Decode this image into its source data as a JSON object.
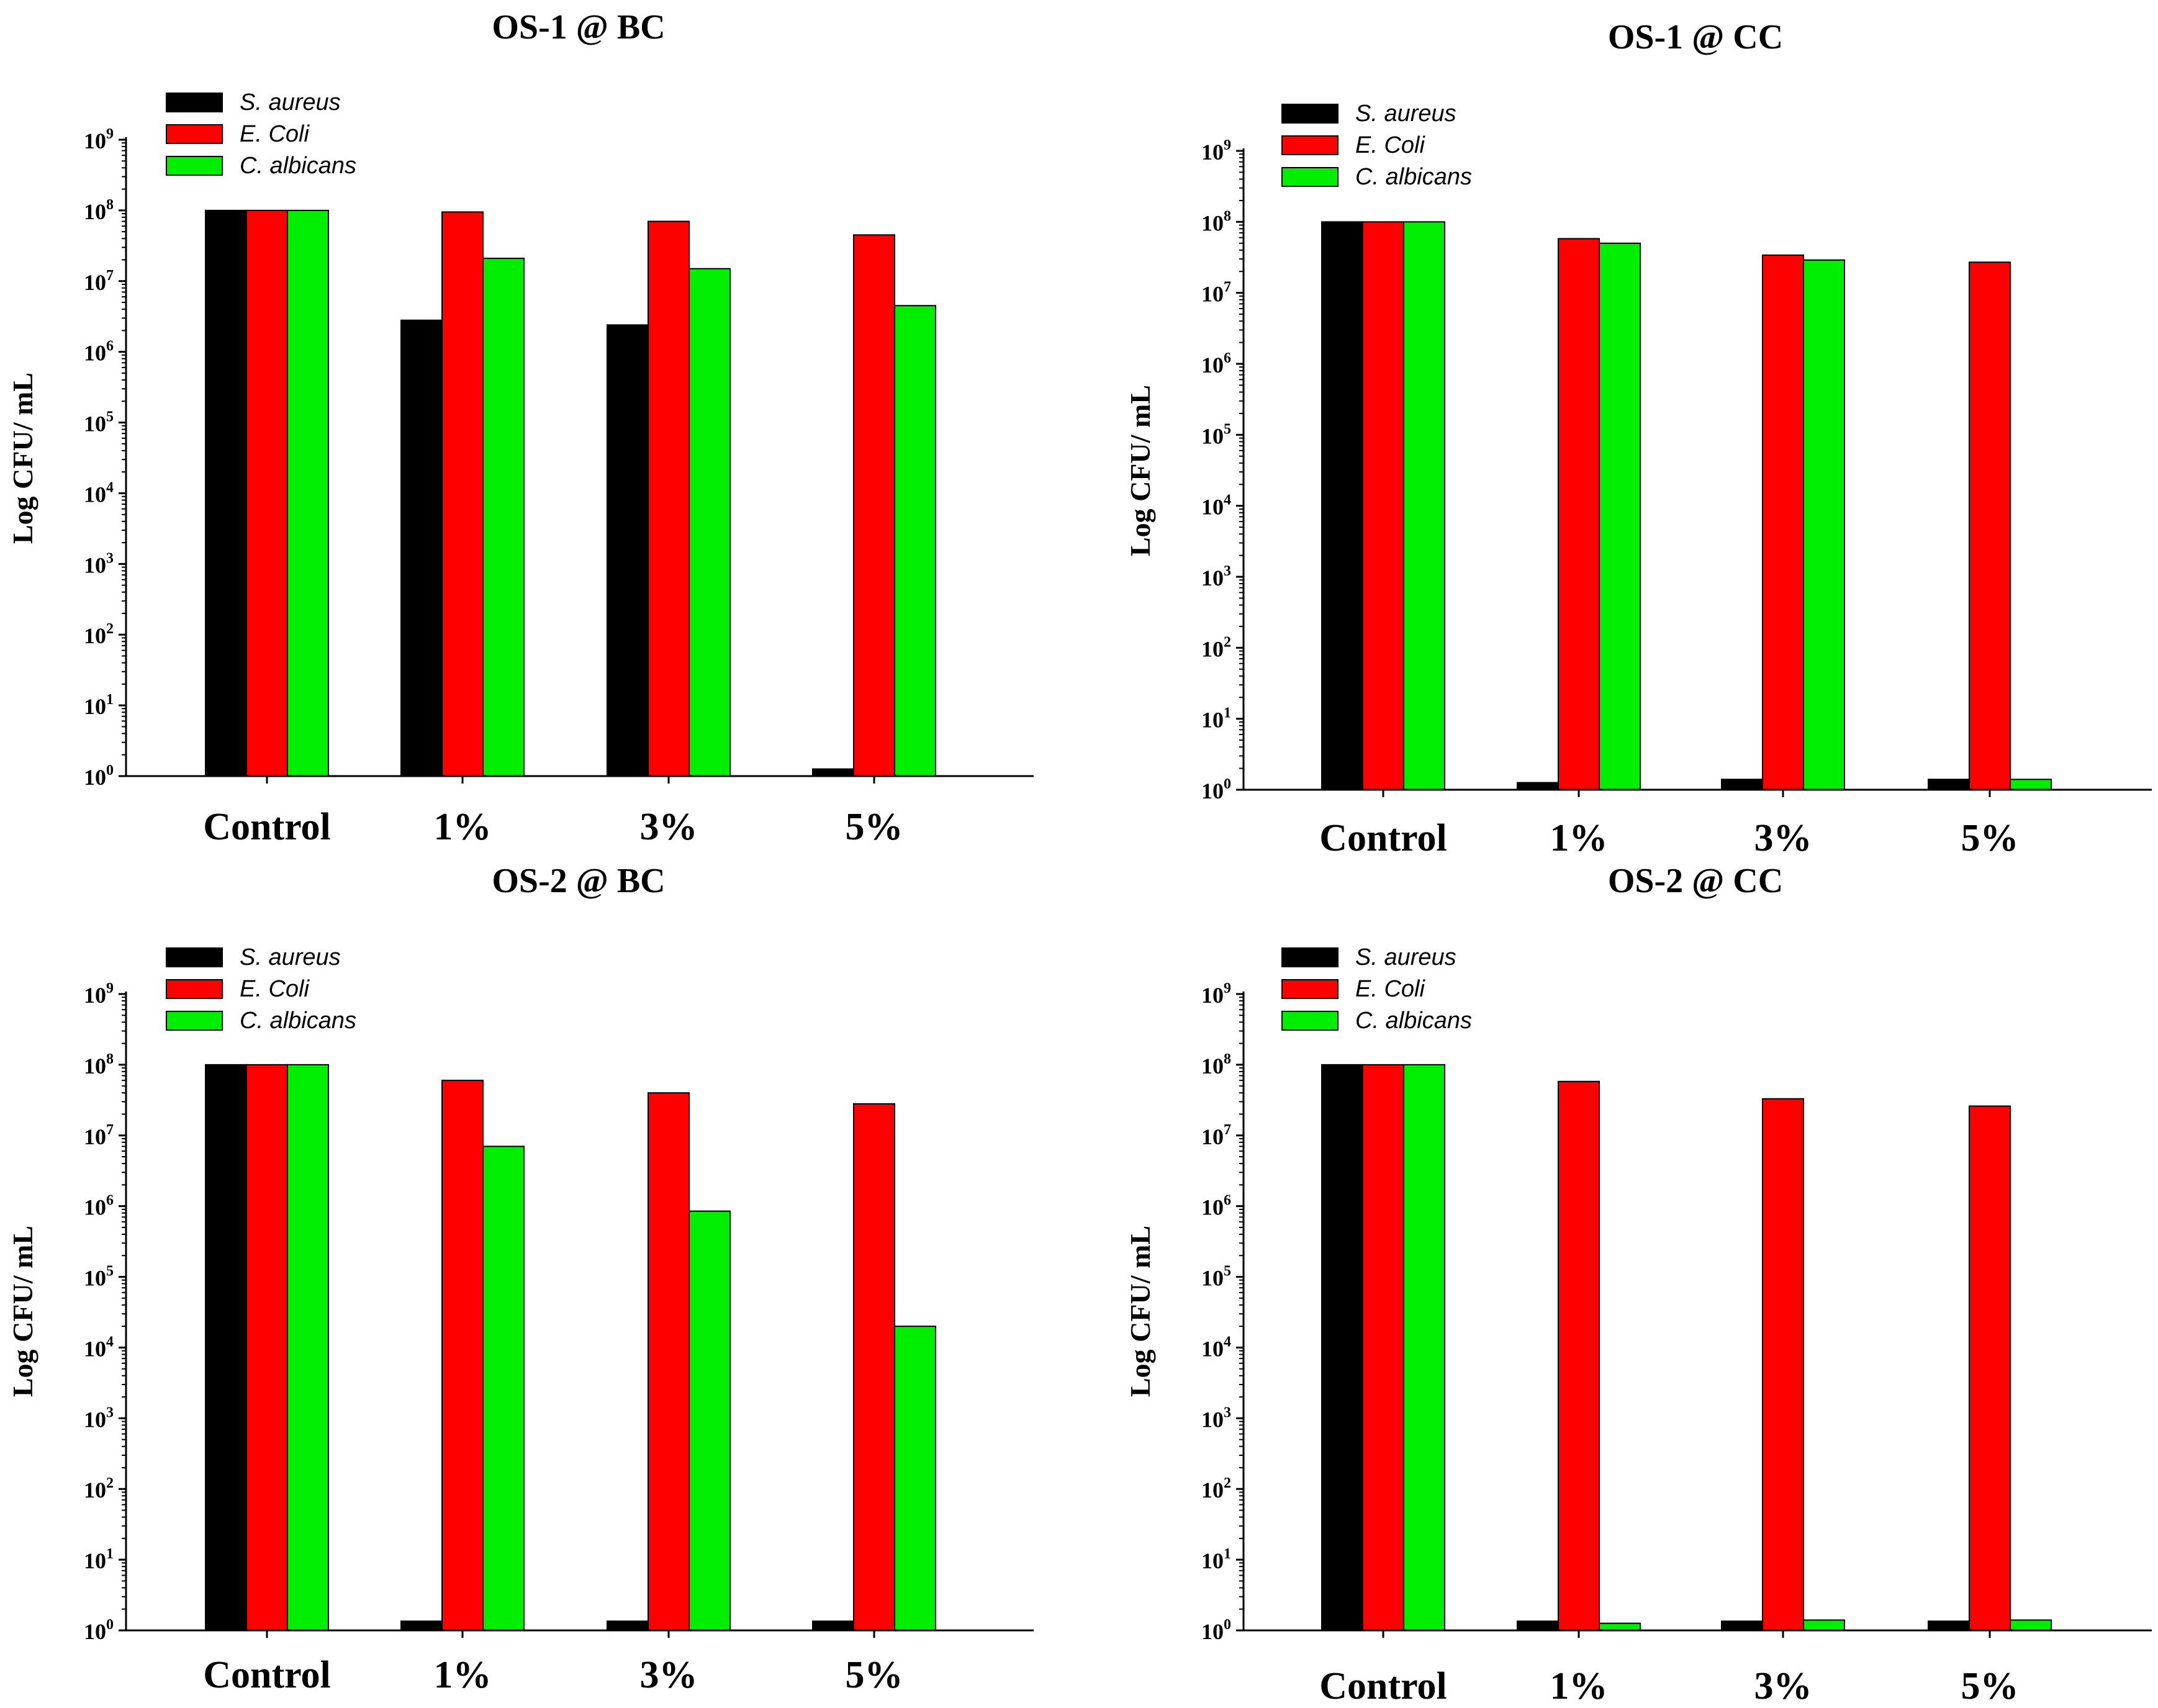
{
  "chart_data": [
    {
      "type": "bar",
      "title": "OS-1 @ BC",
      "ylabel": "Log CFU/ mL",
      "yscale": "log",
      "ylim": [
        1,
        1000000000
      ],
      "yticks": [
        {
          "base": "10",
          "exp": "0"
        },
        {
          "base": "10",
          "exp": "1"
        },
        {
          "base": "10",
          "exp": "2"
        },
        {
          "base": "10",
          "exp": "3"
        },
        {
          "base": "10",
          "exp": "4"
        },
        {
          "base": "10",
          "exp": "5"
        },
        {
          "base": "10",
          "exp": "6"
        },
        {
          "base": "10",
          "exp": "7"
        },
        {
          "base": "10",
          "exp": "8"
        },
        {
          "base": "10",
          "exp": "9"
        }
      ],
      "categories": [
        "Control",
        "1%",
        "3%",
        "5%"
      ],
      "legend": "top-left",
      "series": [
        {
          "name": "S. aureus",
          "color": "#000000",
          "values": [
            100000000,
            2800000,
            2400000,
            1.26
          ]
        },
        {
          "name": "E. Coli",
          "color": "#ff0000",
          "values": [
            100000000,
            95000000,
            70000000,
            45000000
          ]
        },
        {
          "name": "C. albicans",
          "color": "#00ee00",
          "values": [
            100000000,
            21000000,
            15000000,
            4500000
          ]
        }
      ]
    },
    {
      "type": "bar",
      "title": "OS-1 @ CC",
      "ylabel": "Log CFU/ mL",
      "yscale": "log",
      "ylim": [
        1,
        1000000000
      ],
      "yticks": [
        {
          "base": "10",
          "exp": "0"
        },
        {
          "base": "10",
          "exp": "1"
        },
        {
          "base": "10",
          "exp": "2"
        },
        {
          "base": "10",
          "exp": "3"
        },
        {
          "base": "10",
          "exp": "4"
        },
        {
          "base": "10",
          "exp": "5"
        },
        {
          "base": "10",
          "exp": "6"
        },
        {
          "base": "10",
          "exp": "7"
        },
        {
          "base": "10",
          "exp": "8"
        },
        {
          "base": "10",
          "exp": "9"
        }
      ],
      "categories": [
        "Control",
        "1%",
        "3%",
        "5%"
      ],
      "legend": "top-left",
      "series": [
        {
          "name": "S. aureus",
          "color": "#000000",
          "values": [
            100000000,
            1.26,
            1.4,
            1.4
          ]
        },
        {
          "name": "E. Coli",
          "color": "#ff0000",
          "values": [
            100000000,
            58000000,
            34000000,
            27000000
          ]
        },
        {
          "name": "C. albicans",
          "color": "#00ee00",
          "values": [
            100000000,
            50000000,
            29000000,
            1.4
          ]
        }
      ]
    },
    {
      "type": "bar",
      "title": "OS-2 @ BC",
      "ylabel": "Log CFU/ mL",
      "yscale": "log",
      "ylim": [
        1,
        1000000000
      ],
      "yticks": [
        {
          "base": "10",
          "exp": "0"
        },
        {
          "base": "10",
          "exp": "1"
        },
        {
          "base": "10",
          "exp": "2"
        },
        {
          "base": "10",
          "exp": "3"
        },
        {
          "base": "10",
          "exp": "4"
        },
        {
          "base": "10",
          "exp": "5"
        },
        {
          "base": "10",
          "exp": "6"
        },
        {
          "base": "10",
          "exp": "7"
        },
        {
          "base": "10",
          "exp": "8"
        },
        {
          "base": "10",
          "exp": "9"
        }
      ],
      "categories": [
        "Control",
        "1%",
        "3%",
        "5%"
      ],
      "legend": "top-left",
      "series": [
        {
          "name": "S. aureus",
          "color": "#000000",
          "values": [
            100000000,
            1.35,
            1.35,
            1.35
          ]
        },
        {
          "name": "E. Coli",
          "color": "#ff0000",
          "values": [
            100000000,
            60000000,
            40000000,
            28000000
          ]
        },
        {
          "name": "C. albicans",
          "color": "#00ee00",
          "values": [
            100000000,
            7000000,
            850000,
            20000
          ]
        }
      ]
    },
    {
      "type": "bar",
      "title": "OS-2 @ CC",
      "ylabel": "Log CFU/ mL",
      "yscale": "log",
      "ylim": [
        1,
        1000000000
      ],
      "yticks": [
        {
          "base": "10",
          "exp": "0"
        },
        {
          "base": "10",
          "exp": "1"
        },
        {
          "base": "10",
          "exp": "2"
        },
        {
          "base": "10",
          "exp": "3"
        },
        {
          "base": "10",
          "exp": "4"
        },
        {
          "base": "10",
          "exp": "5"
        },
        {
          "base": "10",
          "exp": "6"
        },
        {
          "base": "10",
          "exp": "7"
        },
        {
          "base": "10",
          "exp": "8"
        },
        {
          "base": "10",
          "exp": "9"
        }
      ],
      "categories": [
        "Control",
        "1%",
        "3%",
        "5%"
      ],
      "legend": "top-left",
      "series": [
        {
          "name": "S. aureus",
          "color": "#000000",
          "values": [
            100000000,
            1.35,
            1.35,
            1.35
          ]
        },
        {
          "name": "E. Coli",
          "color": "#ff0000",
          "values": [
            100000000,
            58000000,
            33000000,
            26000000
          ]
        },
        {
          "name": "C. albicans",
          "color": "#00ee00",
          "values": [
            100000000,
            1.26,
            1.4,
            1.4
          ]
        }
      ]
    }
  ]
}
